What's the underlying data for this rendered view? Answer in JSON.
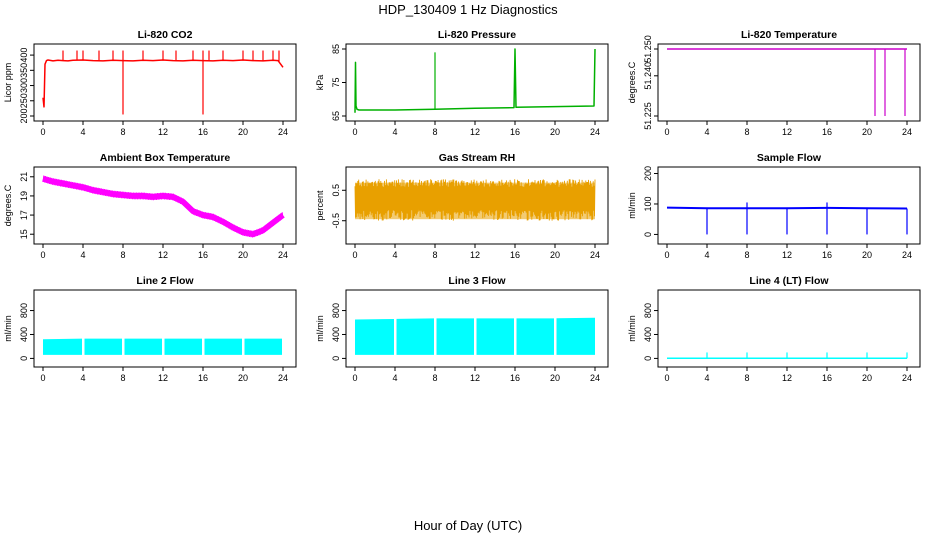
{
  "figure": {
    "title": "HDP_130409  1 Hz Diagnostics",
    "xlabel": "Hour of Day (UTC)"
  },
  "chart_data": [
    {
      "type": "line",
      "title": "Li-820 CO2",
      "ylabel": "Licor ppm",
      "color": "#ff0000",
      "xlim": [
        0,
        24
      ],
      "ylim": [
        200,
        420
      ],
      "yticks": [
        "200",
        "250",
        "300",
        "350",
        "400"
      ],
      "xticks": [
        "0",
        "4",
        "8",
        "12",
        "16",
        "20",
        "24"
      ],
      "series": [
        {
          "x": [
            0,
            0.1,
            0.2,
            0.35,
            0.5,
            1,
            1.5,
            2,
            2.5,
            3,
            4,
            5,
            6,
            7,
            8,
            9,
            10,
            11,
            12,
            13,
            14,
            15,
            16,
            17,
            18,
            19,
            20,
            21,
            22,
            23,
            23.5,
            24
          ],
          "y": [
            260,
            230,
            370,
            382,
            384,
            381,
            383,
            382,
            381,
            383,
            384,
            382,
            381,
            383,
            382,
            381,
            383,
            382,
            384,
            382,
            381,
            383,
            382,
            381,
            383,
            382,
            384,
            382,
            381,
            383,
            382,
            360
          ]
        }
      ],
      "spikes_up": [
        2,
        3.4,
        4,
        5.6,
        7,
        8,
        10,
        12,
        13.3,
        15,
        16,
        16.6,
        18,
        20,
        21,
        22,
        23,
        23.6
      ],
      "spike_top": 415,
      "spikes_down": [
        8,
        16
      ],
      "spike_bottom": 205
    },
    {
      "type": "line",
      "title": "Li-820 Pressure",
      "ylabel": "kPa",
      "color": "#00b000",
      "xlim": [
        0,
        24
      ],
      "ylim": [
        65,
        85
      ],
      "yticks": [
        "65",
        "75",
        "85"
      ],
      "xticks": [
        "0",
        "4",
        "8",
        "12",
        "16",
        "20",
        "24"
      ],
      "series": [
        {
          "x": [
            0,
            0.05,
            0.1,
            0.2,
            0.4,
            4,
            8,
            12,
            15.9,
            16,
            16.1,
            20,
            23.9,
            24
          ],
          "y": [
            66,
            81,
            68,
            67,
            66.8,
            66.8,
            67,
            67.3,
            67.5,
            85,
            67.6,
            67.8,
            68,
            85
          ]
        }
      ],
      "spikes_up": [
        8
      ],
      "spike_top": 84
    },
    {
      "type": "line",
      "title": "Li-820 Temperature",
      "ylabel": "degrees.C",
      "color": "#cc00cc",
      "xlim": [
        0,
        24
      ],
      "ylim": [
        51.225,
        51.25
      ],
      "yticks": [
        "51.225",
        "51.240",
        "51.250"
      ],
      "xticks": [
        "0",
        "4",
        "8",
        "12",
        "16",
        "20",
        "24"
      ],
      "series": [
        {
          "x": [
            0,
            24
          ],
          "y": [
            51.25,
            51.25
          ]
        }
      ],
      "spikes_down": [
        20.8,
        21.8,
        23.8
      ],
      "spike_bottom": 51.225
    },
    {
      "type": "line",
      "title": "Ambient Box Temperature",
      "ylabel": "degrees.C",
      "color": "#ff00ff",
      "band": 0.6,
      "xlim": [
        0,
        24
      ],
      "ylim": [
        14.5,
        21.5
      ],
      "yticks": [
        "15",
        "17",
        "19",
        "21"
      ],
      "xticks": [
        "0",
        "4",
        "8",
        "12",
        "16",
        "20",
        "24"
      ],
      "series": [
        {
          "x": [
            0,
            1,
            2,
            3,
            4,
            5,
            6,
            7,
            8,
            9,
            10,
            11,
            12,
            13,
            14,
            15,
            16,
            17,
            18,
            19,
            20,
            21,
            22,
            23,
            24
          ],
          "y": [
            20.8,
            20.5,
            20.3,
            20.1,
            19.9,
            19.6,
            19.4,
            19.2,
            19.1,
            19.0,
            19.0,
            18.9,
            19.0,
            18.9,
            18.4,
            17.4,
            17.0,
            16.8,
            16.3,
            15.7,
            15.2,
            15.0,
            15.4,
            16.2,
            17.0
          ]
        }
      ]
    },
    {
      "type": "line",
      "title": "Gas Stream RH",
      "ylabel": "percent",
      "color": "#e8a000",
      "noise": true,
      "xlim": [
        0,
        24
      ],
      "ylim": [
        -1.1,
        1.1
      ],
      "yticks": [
        "-0.5",
        "0.5"
      ],
      "xticks": [
        "0",
        "4",
        "8",
        "12",
        "16",
        "20",
        "24"
      ],
      "series": [
        {
          "x": [
            0,
            24
          ],
          "y": [
            0.2,
            0.2
          ]
        }
      ],
      "band_min": -0.75,
      "band_max": 0.95
    },
    {
      "type": "line",
      "title": "Sample Flow",
      "ylabel": "ml/min",
      "color": "#0000ff",
      "band": 6,
      "xlim": [
        0,
        24
      ],
      "ylim": [
        -15,
        205
      ],
      "yticks": [
        "0",
        "100",
        "200"
      ],
      "xticks": [
        "0",
        "4",
        "8",
        "12",
        "16",
        "20",
        "24"
      ],
      "series": [
        {
          "x": [
            0,
            4,
            8,
            12,
            16,
            20,
            24
          ],
          "y": [
            88,
            86,
            86,
            86,
            87,
            86,
            85
          ]
        }
      ],
      "spikes_down": [
        4,
        8,
        12,
        16,
        20,
        24
      ],
      "spike_bottom": 0,
      "spikes_up": [
        8,
        16
      ],
      "spike_top": 105
    },
    {
      "type": "area",
      "title": "Line 2 Flow",
      "ylabel": "ml/min",
      "color": "#00ffff",
      "xlim": [
        0,
        24
      ],
      "ylim": [
        -60,
        1060
      ],
      "yticks": [
        "0",
        "400",
        "800"
      ],
      "xticks": [
        "0",
        "4",
        "8",
        "12",
        "16",
        "20",
        "24"
      ],
      "series": [
        {
          "x": [
            0,
            4,
            8,
            12,
            16,
            20,
            24
          ],
          "y_low": [
            60,
            60,
            60,
            60,
            60,
            60,
            60
          ],
          "y_high": [
            320,
            330,
            330,
            330,
            330,
            330,
            330
          ]
        }
      ],
      "gaps": [
        3.9,
        7.9,
        11.9,
        15.9,
        19.9,
        23.9
      ]
    },
    {
      "type": "area",
      "title": "Line 3 Flow",
      "ylabel": "ml/min",
      "color": "#00ffff",
      "xlim": [
        0,
        24
      ],
      "ylim": [
        -60,
        1060
      ],
      "yticks": [
        "0",
        "400",
        "800"
      ],
      "xticks": [
        "0",
        "4",
        "8",
        "12",
        "16",
        "20",
        "24"
      ],
      "series": [
        {
          "x": [
            0,
            4,
            8,
            12,
            16,
            20,
            24
          ],
          "y_low": [
            60,
            60,
            60,
            60,
            60,
            60,
            60
          ],
          "y_high": [
            650,
            660,
            670,
            670,
            670,
            670,
            680
          ]
        }
      ],
      "gaps": [
        3.9,
        7.9,
        11.9,
        15.9,
        19.9
      ]
    },
    {
      "type": "line",
      "title": "Line 4 (LT) Flow",
      "ylabel": "ml/min",
      "color": "#00ffff",
      "xlim": [
        0,
        24
      ],
      "ylim": [
        -60,
        1060
      ],
      "yticks": [
        "0",
        "400",
        "800"
      ],
      "xticks": [
        "0",
        "4",
        "8",
        "12",
        "16",
        "20",
        "24"
      ],
      "series": [
        {
          "x": [
            0,
            24
          ],
          "y": [
            2,
            2
          ]
        }
      ],
      "spikes_up": [
        4,
        8,
        12,
        16,
        20,
        24
      ],
      "spike_top": 100
    }
  ]
}
